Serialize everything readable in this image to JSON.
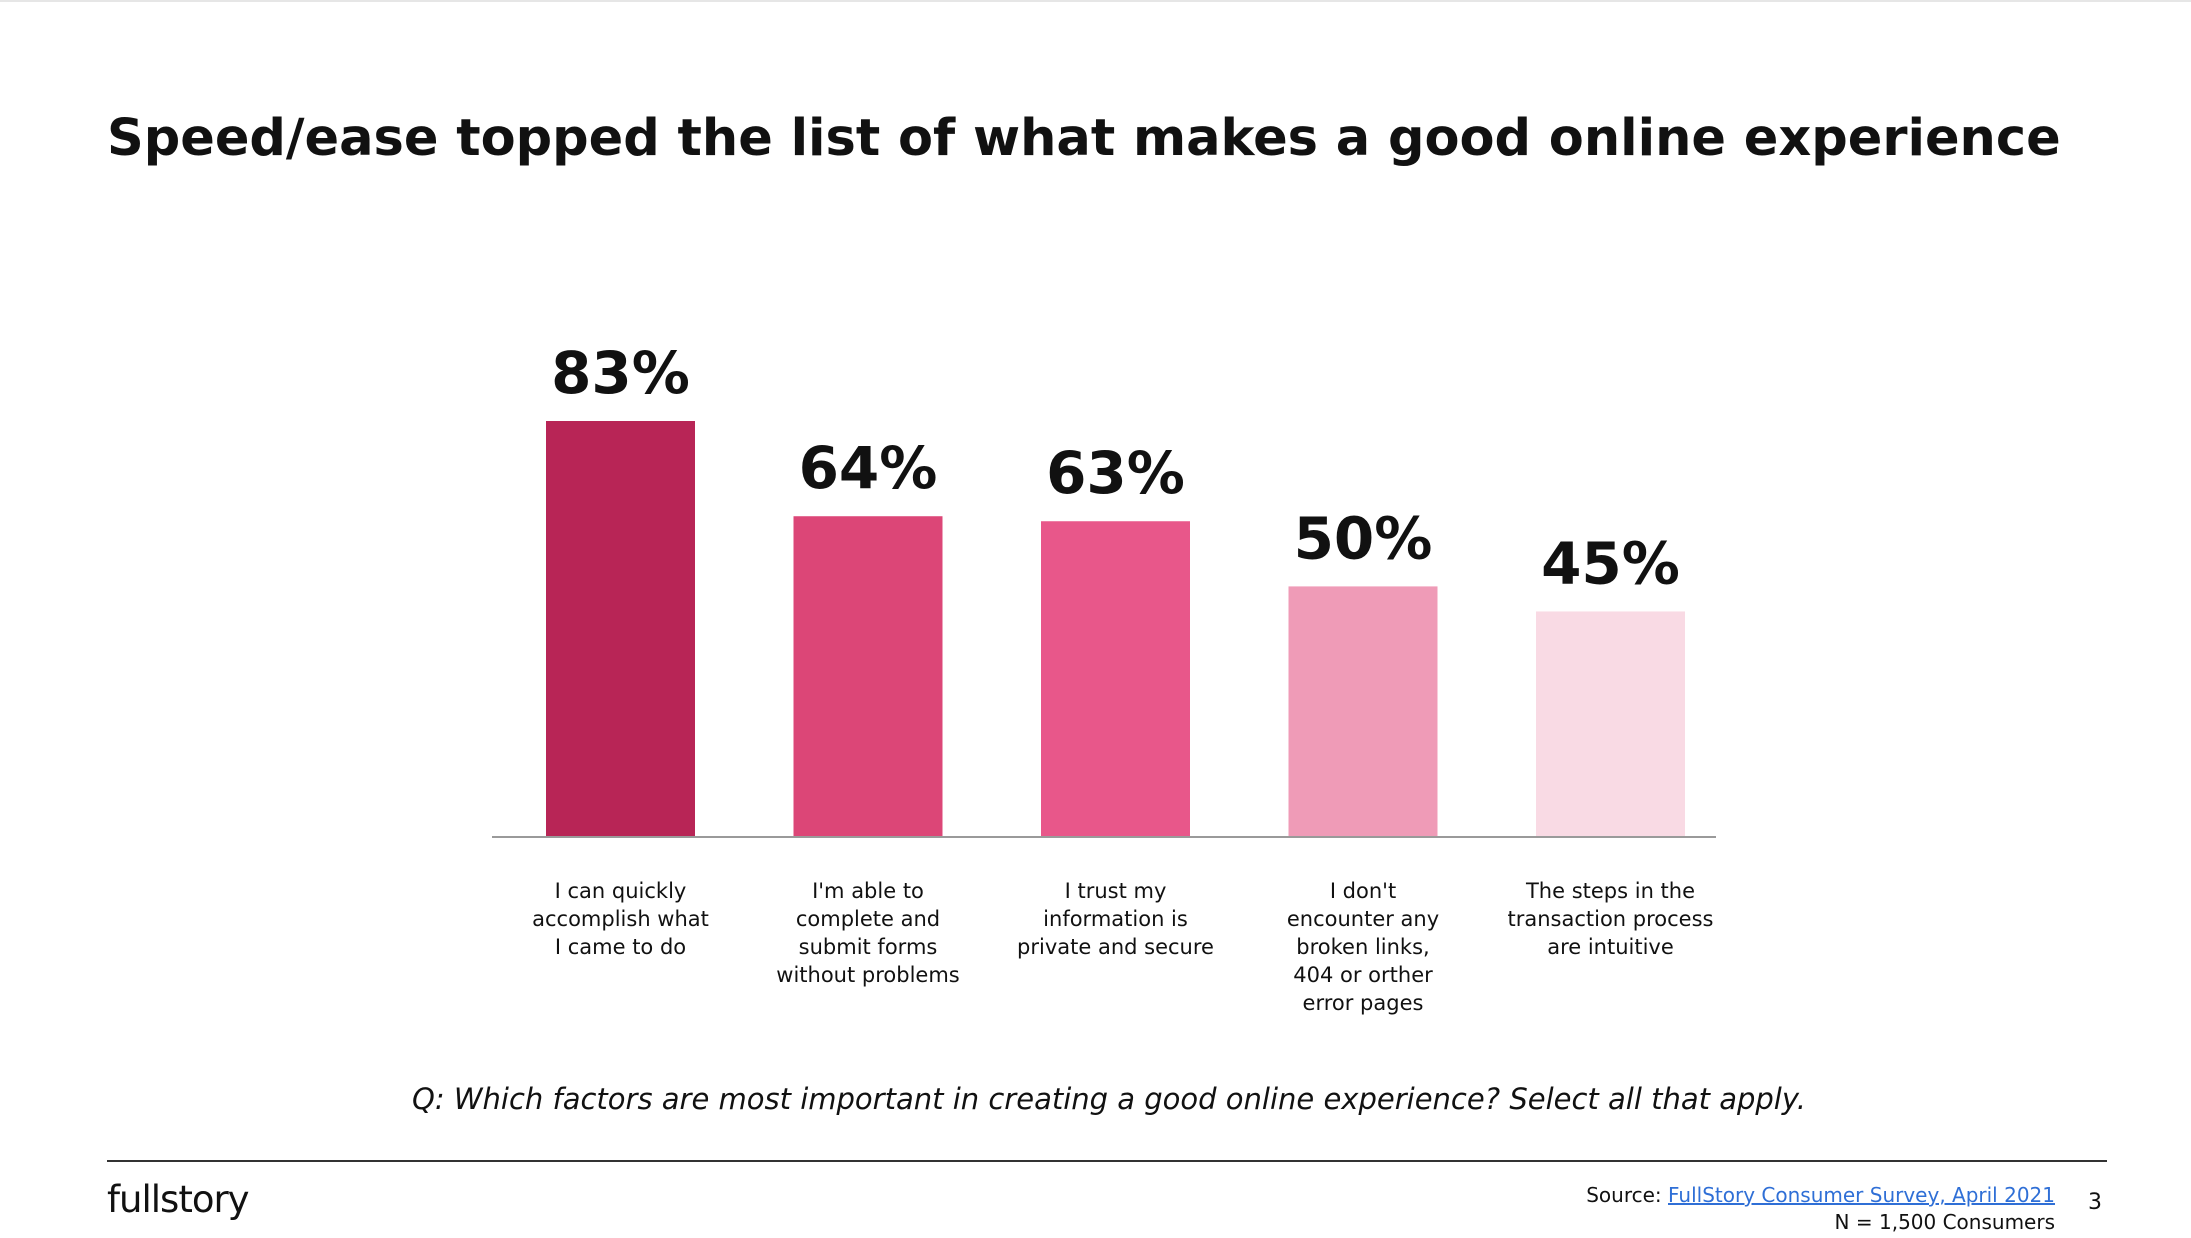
{
  "slide": {
    "title": "Speed/ease topped the list of what makes a good online experience",
    "question": "Q: Which factors are most important in creating a good online experience? Select all that apply.",
    "logo": "fullstory",
    "source_prefix": "Source:",
    "source_link": "FullStory Consumer Survey, April 2021",
    "sample": "N = 1,500 Consumers",
    "page_number": "3"
  },
  "chart_data": {
    "type": "bar",
    "title": "",
    "xlabel": "",
    "ylabel": "",
    "ylim": [
      0,
      83
    ],
    "grid": false,
    "categories": [
      [
        "I can quickly",
        "accomplish what",
        "I came to do"
      ],
      [
        "I'm able to",
        "complete and",
        "submit forms",
        "without problems"
      ],
      [
        "I trust my",
        "information is",
        "private and secure"
      ],
      [
        "I don't",
        "encounter any",
        "broken links,",
        "404 or orther",
        "error pages"
      ],
      [
        "The steps in the",
        "transaction process",
        "are intuitive"
      ]
    ],
    "values": [
      83,
      64,
      63,
      50,
      45
    ],
    "value_labels": [
      "83%",
      "64%",
      "63%",
      "50%",
      "45%"
    ],
    "colors": [
      "#b82556",
      "#dc4677",
      "#e8578a",
      "#ef9bb7",
      "#f9dae4"
    ]
  }
}
